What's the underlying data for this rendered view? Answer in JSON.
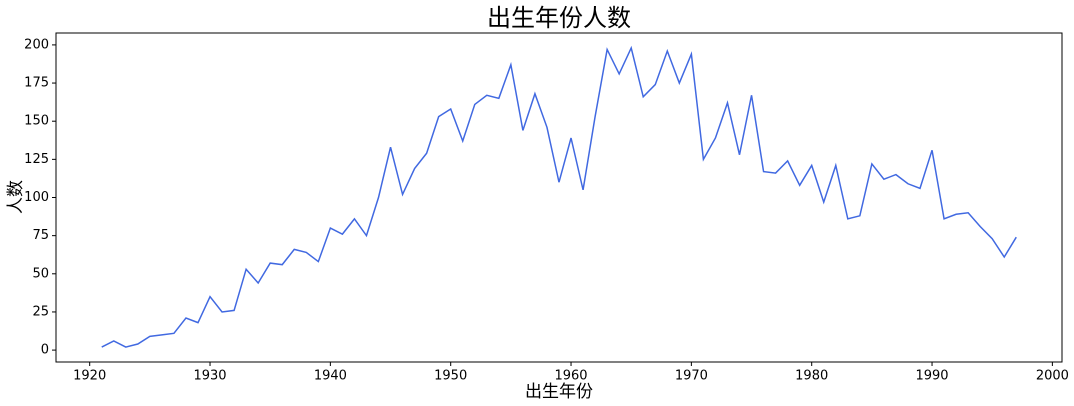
{
  "chart_data": {
    "type": "line",
    "title": "出生年份人数",
    "x_label": "出生年份",
    "y_label": "人数",
    "x": [
      1921,
      1922,
      1923,
      1924,
      1925,
      1926,
      1927,
      1928,
      1929,
      1930,
      1931,
      1932,
      1933,
      1934,
      1935,
      1936,
      1937,
      1938,
      1939,
      1940,
      1941,
      1942,
      1943,
      1944,
      1945,
      1946,
      1947,
      1948,
      1949,
      1950,
      1951,
      1952,
      1953,
      1954,
      1955,
      1956,
      1957,
      1958,
      1959,
      1960,
      1961,
      1962,
      1963,
      1964,
      1965,
      1966,
      1967,
      1968,
      1969,
      1970,
      1971,
      1972,
      1973,
      1974,
      1975,
      1976,
      1977,
      1978,
      1979,
      1980,
      1981,
      1982,
      1983,
      1984,
      1985,
      1986,
      1987,
      1988,
      1989,
      1990,
      1991,
      1992,
      1993,
      1994,
      1995,
      1996,
      1997
    ],
    "series": [
      {
        "color": "#4169e1",
        "values": [
          2,
          6,
          2,
          4,
          9,
          10,
          11,
          21,
          18,
          35,
          25,
          26,
          53,
          44,
          57,
          56,
          66,
          64,
          58,
          80,
          76,
          86,
          75,
          100,
          133,
          102,
          119,
          129,
          153,
          158,
          137,
          161,
          167,
          165,
          187,
          144,
          168,
          146,
          110,
          139,
          105,
          153,
          197,
          181,
          198,
          166,
          174,
          196,
          175,
          194,
          125,
          139,
          162,
          128,
          167,
          117,
          116,
          124,
          108,
          121,
          97,
          121,
          86,
          88,
          122,
          112,
          115,
          109,
          106,
          131,
          86,
          89,
          90,
          81,
          73,
          61,
          74
        ]
      }
    ],
    "xlim": [
      1917.2,
      2000.8
    ],
    "ylim": [
      -7.8,
      207.8
    ],
    "xticks": [
      1920,
      1930,
      1940,
      1950,
      1960,
      1970,
      1980,
      1990,
      2000
    ],
    "yticks": [
      0,
      25,
      50,
      75,
      100,
      125,
      150,
      175,
      200
    ]
  }
}
